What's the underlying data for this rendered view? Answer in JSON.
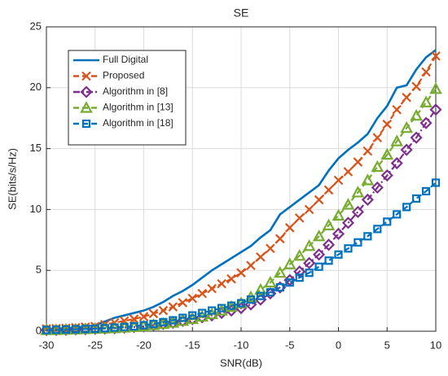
{
  "chart_data": {
    "type": "line",
    "title": "SE",
    "xlabel": "SNR(dB)",
    "ylabel": "SE(bits/s/Hz)",
    "x": [
      -30,
      -29,
      -28,
      -27,
      -26,
      -25,
      -24,
      -23,
      -22,
      -21,
      -20,
      -19,
      -18,
      -17,
      -16,
      -15,
      -14,
      -13,
      -12,
      -11,
      -10,
      -9,
      -8,
      -7,
      -6,
      -5,
      -4,
      -3,
      -2,
      -1,
      0,
      1,
      2,
      3,
      4,
      5,
      6,
      7,
      8,
      9,
      10
    ],
    "series": [
      {
        "name": "Full Digital",
        "color": "#0072bd",
        "dash": "solid",
        "marker": "none",
        "values": [
          0.2,
          0.22,
          0.25,
          0.3,
          0.4,
          0.5,
          0.8,
          1.1,
          1.3,
          1.5,
          1.7,
          2.0,
          2.4,
          2.9,
          3.3,
          3.8,
          4.4,
          5.0,
          5.5,
          6.0,
          6.5,
          7.0,
          7.7,
          8.3,
          9.6,
          10.2,
          10.8,
          11.4,
          12.0,
          13.2,
          14.2,
          14.9,
          15.5,
          16.2,
          17.5,
          18.5,
          20.0,
          20.2,
          21.5,
          22.5,
          23.1
        ]
      },
      {
        "name": "Proposed",
        "color": "#d95319",
        "dash": "dashed",
        "marker": "x",
        "values": [
          0.2,
          0.22,
          0.25,
          0.3,
          0.35,
          0.4,
          0.55,
          0.7,
          0.85,
          1.0,
          1.2,
          1.45,
          1.7,
          2.0,
          2.35,
          2.7,
          3.1,
          3.5,
          3.9,
          4.3,
          4.8,
          5.4,
          6.1,
          6.8,
          7.6,
          8.5,
          9.3,
          10.0,
          10.8,
          11.6,
          12.4,
          13.1,
          13.9,
          14.8,
          15.9,
          17.0,
          18.2,
          19.2,
          20.1,
          21.3,
          22.6
        ]
      },
      {
        "name": "Algorithm in [8]",
        "color": "#7e2f8e",
        "dash": "dashdot",
        "marker": "diamond",
        "values": [
          0.1,
          0.1,
          0.12,
          0.15,
          0.17,
          0.2,
          0.22,
          0.25,
          0.3,
          0.35,
          0.4,
          0.5,
          0.6,
          0.7,
          0.85,
          1.0,
          1.15,
          1.3,
          1.5,
          1.7,
          1.9,
          2.2,
          2.6,
          3.1,
          3.6,
          4.2,
          4.9,
          5.6,
          6.3,
          7.1,
          8.0,
          8.9,
          9.8,
          10.8,
          11.8,
          12.8,
          13.8,
          14.9,
          15.9,
          17.1,
          18.2
        ]
      },
      {
        "name": "Algorithm in [13]",
        "color": "#77ac30",
        "dash": "dashed",
        "marker": "triangle",
        "values": [
          0.1,
          0.1,
          0.12,
          0.15,
          0.17,
          0.2,
          0.22,
          0.25,
          0.3,
          0.35,
          0.4,
          0.5,
          0.6,
          0.7,
          0.85,
          1.0,
          1.2,
          1.4,
          1.7,
          2.0,
          2.3,
          2.8,
          3.4,
          4.0,
          4.8,
          5.5,
          6.2,
          7.0,
          7.8,
          8.7,
          9.5,
          10.4,
          11.4,
          12.4,
          13.5,
          14.5,
          15.6,
          16.7,
          17.7,
          18.8,
          19.9
        ]
      },
      {
        "name": "Algorithm in [18]",
        "color": "#0072bd",
        "dash": "dashed",
        "marker": "square",
        "values": [
          0.1,
          0.12,
          0.14,
          0.16,
          0.18,
          0.2,
          0.25,
          0.3,
          0.35,
          0.4,
          0.5,
          0.6,
          0.75,
          0.9,
          1.1,
          1.3,
          1.5,
          1.7,
          1.9,
          2.1,
          2.3,
          2.6,
          2.9,
          3.2,
          3.6,
          4.0,
          4.4,
          4.8,
          5.3,
          5.8,
          6.3,
          6.8,
          7.3,
          7.8,
          8.4,
          9.0,
          9.6,
          10.2,
          10.9,
          11.5,
          12.2
        ]
      }
    ],
    "xlim": [
      -30,
      10
    ],
    "xticks": [
      -30,
      -25,
      -20,
      -15,
      -10,
      -5,
      0,
      5,
      10
    ],
    "ylim": [
      0,
      25
    ],
    "yticks": [
      0,
      5,
      10,
      15,
      20,
      25
    ],
    "grid": true,
    "legend": "upper left"
  }
}
